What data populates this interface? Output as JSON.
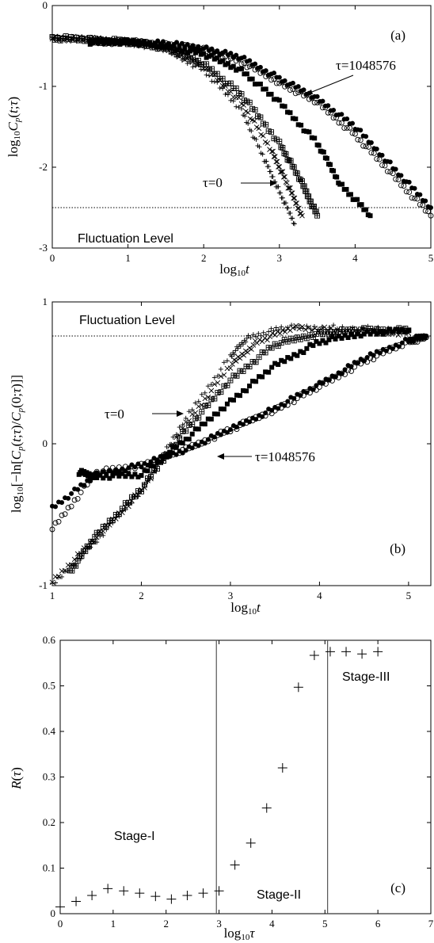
{
  "chart_data": [
    {
      "type": "scatter",
      "panel_label": "(a)",
      "xlabel": "log₁₀t",
      "ylabel": "log₁₀Cₚ(t;τ)",
      "xlim": [
        0,
        5
      ],
      "ylim": [
        -3,
        0
      ],
      "x_ticks": [
        "0",
        "1",
        "2",
        "3",
        "4",
        "5"
      ],
      "y_ticks": [
        "-3",
        "-2",
        "-1",
        "0"
      ],
      "annotations": [
        "τ=1048576",
        "τ=0",
        "Fluctuation Level"
      ],
      "fluctuation_level": -2.5,
      "series": [
        {
          "marker": "plus",
          "x": [
            0.0,
            0.5,
            1.0,
            1.5,
            2.0,
            2.5,
            2.8,
            3.0,
            3.2
          ],
          "y": [
            -0.4,
            -0.42,
            -0.45,
            -0.55,
            -0.8,
            -1.3,
            -1.9,
            -2.3,
            -2.7
          ]
        },
        {
          "marker": "cross",
          "x": [
            0.0,
            0.5,
            1.0,
            1.5,
            2.0,
            2.5,
            2.9,
            3.1,
            3.3
          ],
          "y": [
            -0.4,
            -0.42,
            -0.45,
            -0.53,
            -0.75,
            -1.2,
            -1.8,
            -2.2,
            -2.6
          ]
        },
        {
          "marker": "boxplus",
          "x": [
            0.0,
            0.5,
            1.0,
            1.5,
            2.0,
            2.5,
            3.0,
            3.3,
            3.5
          ],
          "y": [
            -0.4,
            -0.42,
            -0.45,
            -0.52,
            -0.72,
            -1.1,
            -1.7,
            -2.2,
            -2.6
          ]
        },
        {
          "marker": "square",
          "x": [
            0.5,
            1.0,
            1.5,
            2.0,
            2.5,
            3.0,
            3.5,
            3.8,
            4.2
          ],
          "y": [
            -0.45,
            -0.45,
            -0.5,
            -0.6,
            -0.8,
            -1.2,
            -1.7,
            -2.2,
            -2.6
          ]
        },
        {
          "marker": "circle",
          "x": [
            0.5,
            1.0,
            1.5,
            2.0,
            2.5,
            3.0,
            3.5,
            4.0,
            4.5,
            5.0
          ],
          "y": [
            -0.45,
            -0.45,
            -0.48,
            -0.55,
            -0.7,
            -0.95,
            -1.2,
            -1.6,
            -2.1,
            -2.6
          ]
        },
        {
          "marker": "dot",
          "x": [
            0.5,
            1.0,
            1.5,
            2.0,
            2.5,
            3.0,
            3.5,
            4.0,
            4.5,
            5.0
          ],
          "y": [
            -0.45,
            -0.45,
            -0.47,
            -0.52,
            -0.65,
            -0.9,
            -1.15,
            -1.5,
            -2.0,
            -2.5
          ]
        }
      ]
    },
    {
      "type": "scatter",
      "panel_label": "(b)",
      "xlabel": "log₁₀t",
      "ylabel": "log₁₀[−ln[Cₚ(t;τ)/Cₚ(0;τ)]]",
      "xlim": [
        1,
        5.25
      ],
      "ylim": [
        -1,
        1
      ],
      "x_ticks": [
        "1",
        "2",
        "3",
        "4",
        "5"
      ],
      "y_ticks": [
        "-1",
        "0",
        "1"
      ],
      "annotations": [
        "Fluctuation Level",
        "τ=0",
        "τ=1048576"
      ],
      "fluctuation_level": 0.76,
      "series": [
        {
          "marker": "plus",
          "x": [
            1.0,
            1.5,
            2.0,
            2.5,
            3.0,
            3.2,
            3.6,
            4.2,
            5.0
          ],
          "y": [
            -1.0,
            -0.68,
            -0.33,
            0.18,
            0.62,
            0.75,
            0.82,
            0.82,
            0.8
          ]
        },
        {
          "marker": "cross",
          "x": [
            1.0,
            1.5,
            2.0,
            2.5,
            3.0,
            3.3,
            3.7,
            4.2,
            5.0
          ],
          "y": [
            -0.97,
            -0.66,
            -0.33,
            0.14,
            0.55,
            0.72,
            0.82,
            0.8,
            0.78
          ]
        },
        {
          "marker": "boxplus",
          "x": [
            1.2,
            1.5,
            2.0,
            2.5,
            3.0,
            3.5,
            4.0,
            4.5,
            5.0
          ],
          "y": [
            -0.9,
            -0.64,
            -0.32,
            0.1,
            0.45,
            0.7,
            0.78,
            0.8,
            0.8
          ]
        },
        {
          "marker": "square",
          "x": [
            1.3,
            1.5,
            2.0,
            2.5,
            3.0,
            3.5,
            4.0,
            4.5,
            5.0
          ],
          "y": [
            -0.2,
            -0.23,
            -0.22,
            0.03,
            0.3,
            0.55,
            0.72,
            0.78,
            0.8
          ]
        },
        {
          "marker": "circle",
          "x": [
            1.0,
            1.5,
            2.0,
            2.5,
            3.0,
            3.5,
            4.0,
            4.5,
            5.0,
            5.2
          ],
          "y": [
            -0.6,
            -0.2,
            -0.15,
            -0.04,
            0.1,
            0.24,
            0.4,
            0.58,
            0.72,
            0.75
          ]
        },
        {
          "marker": "dot",
          "x": [
            1.0,
            1.5,
            2.0,
            2.5,
            3.0,
            3.5,
            4.0,
            4.5,
            5.0,
            5.2
          ],
          "y": [
            -0.45,
            -0.22,
            -0.15,
            -0.04,
            0.1,
            0.25,
            0.42,
            0.6,
            0.73,
            0.76
          ]
        }
      ]
    },
    {
      "type": "scatter",
      "panel_label": "(c)",
      "xlabel": "log₁₀τ",
      "ylabel": "R(τ)",
      "xlim": [
        0,
        7
      ],
      "ylim": [
        0,
        0.6
      ],
      "x_ticks": [
        "0",
        "1",
        "2",
        "3",
        "4",
        "5",
        "6",
        "7"
      ],
      "y_ticks": [
        "0",
        "0.1",
        "0.2",
        "0.3",
        "0.4",
        "0.5",
        "0.6"
      ],
      "stage_boundaries": [
        2.95,
        5.05
      ],
      "annotations": [
        "Stage-I",
        "Stage-II",
        "Stage-III"
      ],
      "series": [
        {
          "marker": "plus",
          "x": [
            0.0,
            0.3,
            0.6,
            0.9,
            1.2,
            1.5,
            1.8,
            2.1,
            2.4,
            2.7,
            3.0,
            3.3,
            3.6,
            3.9,
            4.2,
            4.5,
            4.8,
            5.1,
            5.4,
            5.7,
            6.0
          ],
          "y": [
            0.015,
            0.027,
            0.04,
            0.055,
            0.05,
            0.045,
            0.038,
            0.032,
            0.04,
            0.045,
            0.05,
            0.107,
            0.155,
            0.232,
            0.32,
            0.497,
            0.567,
            0.575,
            0.575,
            0.57,
            0.575
          ]
        }
      ]
    }
  ]
}
